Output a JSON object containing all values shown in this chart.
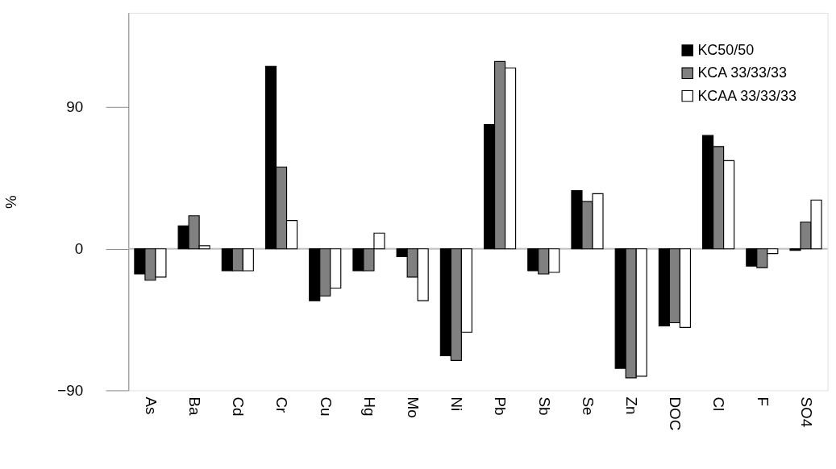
{
  "chart_data": {
    "type": "bar",
    "ylabel": "%",
    "categories": [
      "As",
      "Ba",
      "Cd",
      "Cr",
      "Cu",
      "Hg",
      "Mo",
      "Ni",
      "Pb",
      "Sb",
      "Se",
      "Zn",
      "DOC",
      "Cl",
      "F",
      "SO4"
    ],
    "series": [
      {
        "name": "KC50/50",
        "color": "#000000",
        "values": [
          -16,
          14.5,
          -14,
          116,
          -33,
          -14,
          -5,
          -68,
          79,
          -14,
          37,
          -76,
          -49,
          72,
          -11,
          -1
        ]
      },
      {
        "name": "KCA 33/33/33",
        "color": "#808080",
        "values": [
          -20,
          21,
          -14,
          52,
          -30,
          -14,
          -18,
          -71,
          119,
          -16,
          30,
          -82,
          -47,
          65,
          -12,
          17
        ]
      },
      {
        "name": "KCAA 33/33/33",
        "color": "#ffffff",
        "values": [
          -18,
          2,
          -14,
          18,
          -25,
          10,
          -33,
          -53,
          115,
          -15,
          35,
          -81,
          -50,
          56,
          -3,
          31
        ]
      }
    ],
    "ylim": [
      -90,
      150
    ],
    "yticks": [
      -90,
      0,
      90
    ],
    "grid": false,
    "legend": "top right",
    "ref_lines": [
      {
        "axis": "y",
        "value": 0,
        "color": "#bfbfbf"
      }
    ]
  }
}
